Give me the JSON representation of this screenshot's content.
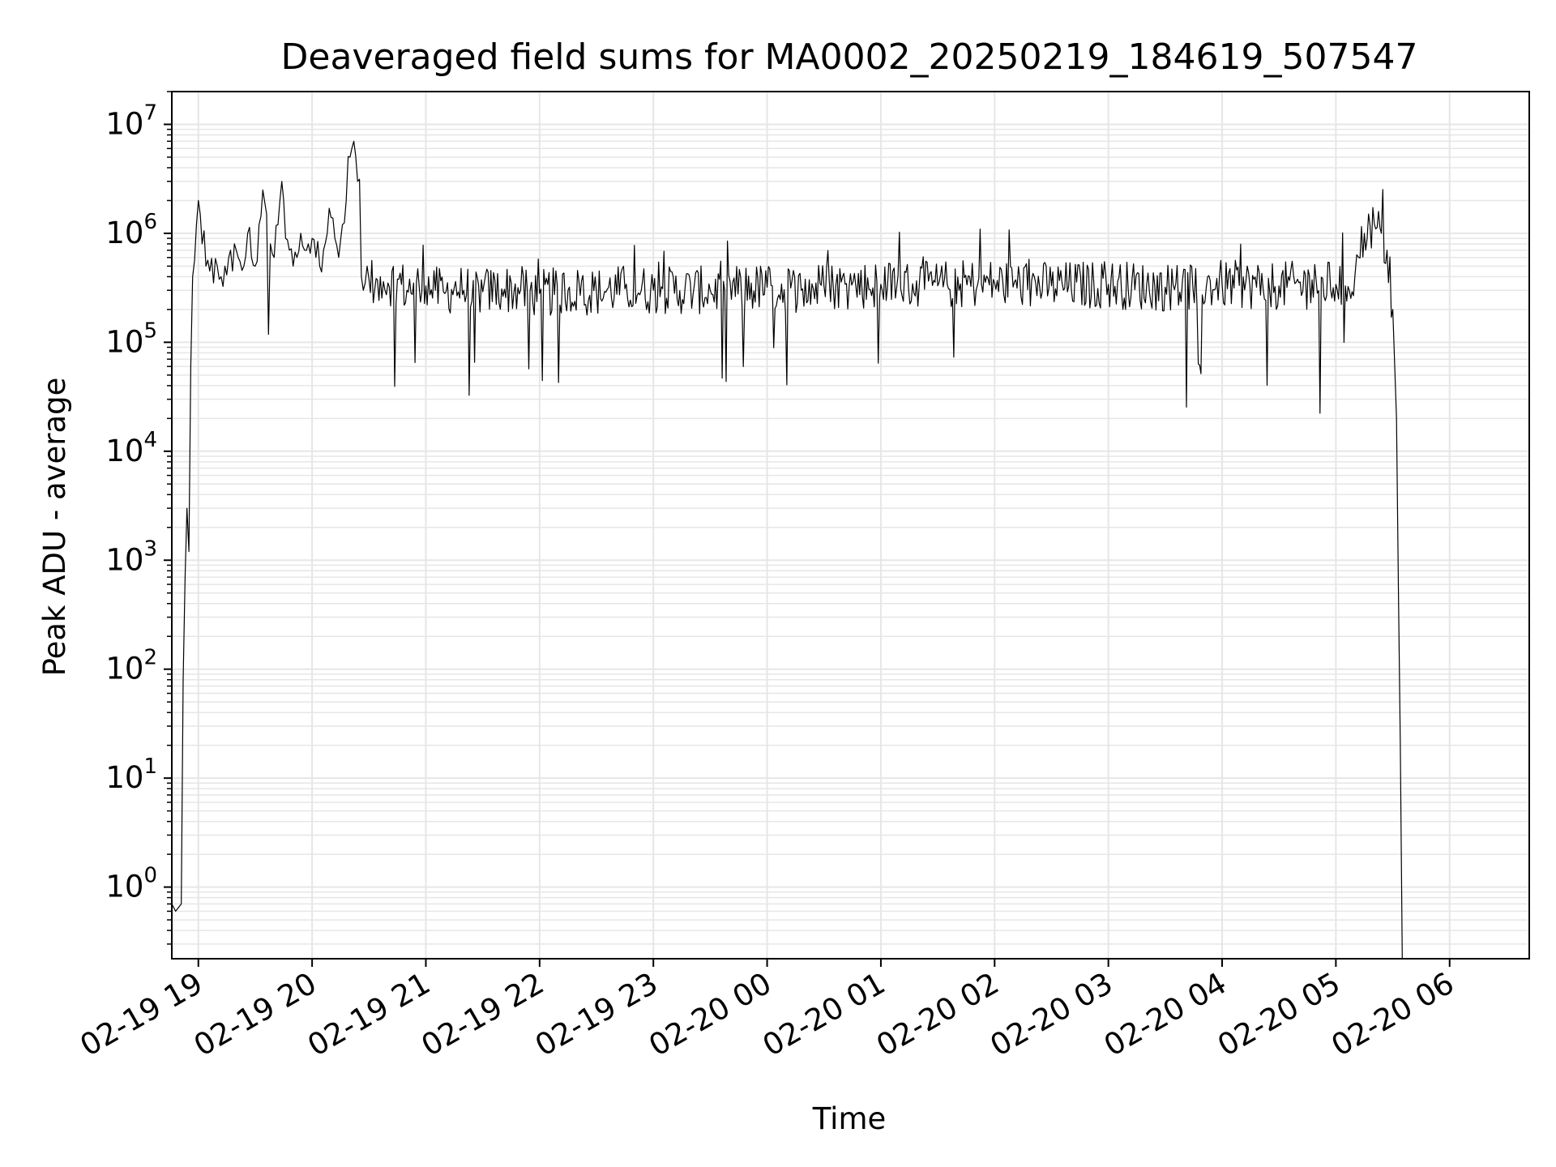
{
  "chart_data": {
    "type": "line",
    "title": "Deaveraged field sums for MA0002_20250219_184619_507547",
    "xlabel": "Time",
    "ylabel": "Peak ADU - average",
    "yscale": "log",
    "ylim": [
      0.22,
      20000000.0
    ],
    "xlim": [
      "2025-02-19 18:46",
      "2025-02-20 06:42"
    ],
    "grid": true,
    "legend": "none",
    "line_color": "#000000",
    "grid_color": "#e6e6e6",
    "xticks": [
      {
        "value": "2025-02-19 19:00",
        "label": "02-19 19"
      },
      {
        "value": "2025-02-19 20:00",
        "label": "02-19 20"
      },
      {
        "value": "2025-02-19 21:00",
        "label": "02-19 21"
      },
      {
        "value": "2025-02-19 22:00",
        "label": "02-19 22"
      },
      {
        "value": "2025-02-19 23:00",
        "label": "02-19 23"
      },
      {
        "value": "2025-02-20 00:00",
        "label": "02-20 00"
      },
      {
        "value": "2025-02-20 01:00",
        "label": "02-20 01"
      },
      {
        "value": "2025-02-20 02:00",
        "label": "02-20 02"
      },
      {
        "value": "2025-02-20 03:00",
        "label": "02-20 03"
      },
      {
        "value": "2025-02-20 04:00",
        "label": "02-20 04"
      },
      {
        "value": "2025-02-20 05:00",
        "label": "02-20 05"
      },
      {
        "value": "2025-02-20 06:00",
        "label": "02-20 06"
      }
    ],
    "yticks": [
      {
        "value": 1,
        "base": "10",
        "exp": "0"
      },
      {
        "value": 10,
        "base": "10",
        "exp": "1"
      },
      {
        "value": 100,
        "base": "10",
        "exp": "2"
      },
      {
        "value": 1000,
        "base": "10",
        "exp": "3"
      },
      {
        "value": 10000,
        "base": "10",
        "exp": "4"
      },
      {
        "value": 100000,
        "base": "10",
        "exp": "5"
      },
      {
        "value": 1000000,
        "base": "10",
        "exp": "6"
      },
      {
        "value": 10000000,
        "base": "10",
        "exp": "7"
      }
    ],
    "series": [
      {
        "x": [
          "2025-02-19 18:46",
          "2025-02-19 18:48",
          "2025-02-19 18:51",
          "2025-02-19 18:52",
          "2025-02-19 18:53",
          "2025-02-19 18:54",
          "2025-02-19 18:55",
          "2025-02-19 18:56",
          "2025-02-19 18:57",
          "2025-02-19 18:59",
          "2025-02-19 19:00",
          "2025-02-19 19:01",
          "2025-02-19 19:02",
          "2025-02-19 19:04",
          "2025-02-19 19:06",
          "2025-02-19 19:08",
          "2025-02-19 19:10",
          "2025-02-19 19:12",
          "2025-02-19 19:14",
          "2025-02-19 19:16",
          "2025-02-19 19:18",
          "2025-02-19 19:20",
          "2025-02-19 19:22",
          "2025-02-19 19:24",
          "2025-02-19 19:26",
          "2025-02-19 19:28",
          "2025-02-19 19:30",
          "2025-02-19 19:32",
          "2025-02-19 19:34",
          "2025-02-19 19:36",
          "2025-02-19 19:38",
          "2025-02-19 19:40",
          "2025-02-19 19:42",
          "2025-02-19 19:44",
          "2025-02-19 19:46",
          "2025-02-19 19:48",
          "2025-02-19 19:50",
          "2025-02-19 19:52",
          "2025-02-19 19:54",
          "2025-02-19 19:56",
          "2025-02-19 19:58",
          "2025-02-19 20:00",
          "2025-02-19 20:02",
          "2025-02-19 20:04",
          "2025-02-19 20:06",
          "2025-02-19 20:08",
          "2025-02-19 20:10",
          "2025-02-19 20:12",
          "2025-02-19 20:14",
          "2025-02-19 20:16",
          "2025-02-19 20:18",
          "2025-02-19 20:20",
          "2025-02-19 20:22",
          "2025-02-19 20:24",
          "2025-02-19 20:26",
          "2025-02-19 20:27",
          "2025-02-19 20:28",
          "2025-02-19 20:30",
          "2025-02-19 20:33",
          "2025-02-19 20:36",
          "2025-02-19 20:40",
          "2025-02-19 20:45",
          "2025-02-19 20:50",
          "2025-02-19 20:55",
          "2025-02-19 21:00",
          "2025-02-19 21:05",
          "2025-02-19 21:10",
          "2025-02-19 21:15",
          "2025-02-19 21:20",
          "2025-02-19 21:30",
          "2025-02-19 21:40",
          "2025-02-19 21:50",
          "2025-02-19 22:00",
          "2025-02-19 22:15",
          "2025-02-19 22:30",
          "2025-02-19 22:45",
          "2025-02-19 23:00",
          "2025-02-19 23:30",
          "2025-02-20 00:00",
          "2025-02-20 00:18",
          "2025-02-20 00:30",
          "2025-02-20 01:00",
          "2025-02-20 01:30",
          "2025-02-20 01:35",
          "2025-02-20 02:00",
          "2025-02-20 02:30",
          "2025-02-20 03:00",
          "2025-02-20 03:30",
          "2025-02-20 04:00",
          "2025-02-20 04:30",
          "2025-02-20 05:00",
          "2025-02-20 05:05",
          "2025-02-20 05:10",
          "2025-02-20 05:12",
          "2025-02-20 05:15",
          "2025-02-20 05:18",
          "2025-02-20 05:21",
          "2025-02-20 05:24",
          "2025-02-20 05:27",
          "2025-02-20 05:30",
          "2025-02-20 05:32",
          "2025-02-20 05:33",
          "2025-02-20 05:34",
          "2025-02-20 05:35"
        ],
        "y": [
          0.7,
          0.6,
          0.7,
          80,
          700,
          3000,
          1200,
          60000,
          400000,
          1200000,
          2000000,
          1500000,
          800000,
          500000,
          450000,
          350000,
          500000,
          400000,
          500000,
          600000,
          450000,
          700000,
          550000,
          500000,
          1000000,
          600000,
          500000,
          1200000,
          2500000,
          1500000,
          800000,
          600000,
          1200000,
          3000000,
          900000,
          700000,
          500000,
          600000,
          1000000,
          700000,
          800000,
          900000,
          600000,
          500000,
          700000,
          1000000,
          1400000,
          900000,
          600000,
          1200000,
          2000000,
          5000000,
          7000000,
          3000000,
          400000,
          300000,
          350000,
          380000,
          300000,
          400000,
          350000,
          380000,
          300000,
          350000,
          330000,
          300000,
          280000,
          320000,
          300000,
          290000,
          310000,
          300000,
          280000,
          300000,
          290000,
          310000,
          300000,
          300000,
          320000,
          300000,
          330000,
          340000,
          330000,
          340000,
          350000,
          330000,
          340000,
          320000,
          340000,
          330000,
          340000,
          330000,
          400000,
          600000,
          1000000,
          1200000,
          1100000,
          1000000,
          700000,
          200000,
          20000,
          500,
          20,
          0.2
        ]
      }
    ]
  }
}
